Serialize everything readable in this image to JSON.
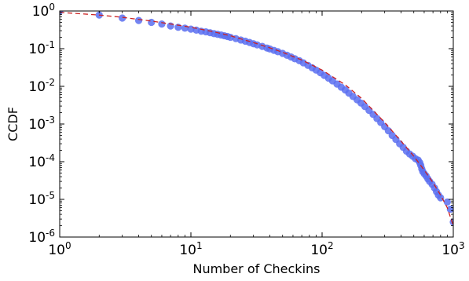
{
  "chart_data": {
    "type": "scatter",
    "title": "",
    "xlabel": "Number of Checkins",
    "ylabel": "CCDF",
    "x_scale": "log",
    "y_scale": "log",
    "xlim": [
      1,
      1000
    ],
    "ylim": [
      1e-06,
      1
    ],
    "grid": false,
    "legend": "none",
    "x_ticks": [
      {
        "value": 1,
        "base": "10",
        "exp": "0"
      },
      {
        "value": 10,
        "base": "10",
        "exp": "1"
      },
      {
        "value": 100,
        "base": "10",
        "exp": "2"
      },
      {
        "value": 1000,
        "base": "10",
        "exp": "3"
      }
    ],
    "y_ticks": [
      {
        "value": 1e-06,
        "base": "10",
        "exp": "-6"
      },
      {
        "value": 1e-05,
        "base": "10",
        "exp": "-5"
      },
      {
        "value": 0.0001,
        "base": "10",
        "exp": "-4"
      },
      {
        "value": 0.001,
        "base": "10",
        "exp": "-3"
      },
      {
        "value": 0.01,
        "base": "10",
        "exp": "-2"
      },
      {
        "value": 0.1,
        "base": "10",
        "exp": "-1"
      },
      {
        "value": 1,
        "base": "10",
        "exp": "0"
      }
    ],
    "colors": {
      "points": "#5b6ef0",
      "fit": "#cc2222",
      "axes": "#000000"
    },
    "series": [
      {
        "kind": "points",
        "points": [
          [
            1,
            1
          ],
          [
            2,
            0.78
          ],
          [
            3,
            0.65
          ],
          [
            4,
            0.56
          ],
          [
            5,
            0.5
          ],
          [
            6,
            0.45
          ],
          [
            7,
            0.4
          ],
          [
            8,
            0.37
          ],
          [
            9,
            0.35
          ],
          [
            10,
            0.33
          ],
          [
            11,
            0.31
          ],
          [
            12,
            0.29
          ],
          [
            13,
            0.28
          ],
          [
            14,
            0.265
          ],
          [
            15,
            0.25
          ],
          [
            16,
            0.24
          ],
          [
            17,
            0.23
          ],
          [
            18,
            0.22
          ],
          [
            19,
            0.21
          ],
          [
            20,
            0.2
          ],
          [
            22,
            0.185
          ],
          [
            24,
            0.17
          ],
          [
            26,
            0.158
          ],
          [
            28,
            0.146
          ],
          [
            30,
            0.135
          ],
          [
            32,
            0.126
          ],
          [
            35,
            0.115
          ],
          [
            38,
            0.104
          ],
          [
            40,
            0.098
          ],
          [
            43,
            0.09
          ],
          [
            46,
            0.083
          ],
          [
            50,
            0.075
          ],
          [
            54,
            0.067
          ],
          [
            58,
            0.06
          ],
          [
            62,
            0.054
          ],
          [
            67,
            0.048
          ],
          [
            72,
            0.042
          ],
          [
            78,
            0.036
          ],
          [
            84,
            0.031
          ],
          [
            90,
            0.027
          ],
          [
            97,
            0.023
          ],
          [
            104,
            0.0195
          ],
          [
            112,
            0.0165
          ],
          [
            120,
            0.014
          ],
          [
            130,
            0.0115
          ],
          [
            140,
            0.0095
          ],
          [
            150,
            0.008
          ],
          [
            160,
            0.0066
          ],
          [
            172,
            0.0054
          ],
          [
            185,
            0.0044
          ],
          [
            198,
            0.0036
          ],
          [
            212,
            0.0029
          ],
          [
            228,
            0.0023
          ],
          [
            245,
            0.0018
          ],
          [
            262,
            0.0014
          ],
          [
            280,
            0.0011
          ],
          [
            300,
            0.00085
          ],
          [
            320,
            0.00066
          ],
          [
            342,
            0.0005
          ],
          [
            365,
            0.00039
          ],
          [
            390,
            0.0003
          ],
          [
            415,
            0.00024
          ],
          [
            440,
            0.00019
          ],
          [
            465,
            0.00016
          ],
          [
            490,
            0.00014
          ],
          [
            515,
            0.00012
          ],
          [
            540,
            0.00011
          ],
          [
            555,
            9.5e-05
          ],
          [
            565,
            8e-05
          ],
          [
            575,
            6.5e-05
          ],
          [
            585,
            5.5e-05
          ],
          [
            600,
            4.8e-05
          ],
          [
            620,
            4.2e-05
          ],
          [
            640,
            3.5e-05
          ],
          [
            660,
            3e-05
          ],
          [
            690,
            2.5e-05
          ],
          [
            720,
            2e-05
          ],
          [
            745,
            1.6e-05
          ],
          [
            770,
            1.3e-05
          ],
          [
            800,
            1.1e-05
          ],
          [
            900,
            8.5e-06
          ],
          [
            950,
            5.5e-06
          ],
          [
            1000,
            2.5e-06
          ]
        ]
      },
      {
        "kind": "fit",
        "style": "dashed",
        "points": [
          [
            1,
            0.92
          ],
          [
            2,
            0.78
          ],
          [
            3,
            0.68
          ],
          [
            5,
            0.54
          ],
          [
            8,
            0.42
          ],
          [
            10,
            0.37
          ],
          [
            15,
            0.28
          ],
          [
            20,
            0.22
          ],
          [
            30,
            0.145
          ],
          [
            40,
            0.105
          ],
          [
            50,
            0.08
          ],
          [
            70,
            0.05
          ],
          [
            100,
            0.027
          ],
          [
            150,
            0.011
          ],
          [
            200,
            0.0048
          ],
          [
            300,
            0.0011
          ],
          [
            400,
            0.00035
          ],
          [
            500,
            0.00014
          ],
          [
            600,
            6e-05
          ],
          [
            700,
            2.8e-05
          ],
          [
            800,
            1.3e-05
          ],
          [
            900,
            6e-06
          ],
          [
            1000,
            2e-06
          ]
        ]
      }
    ]
  }
}
